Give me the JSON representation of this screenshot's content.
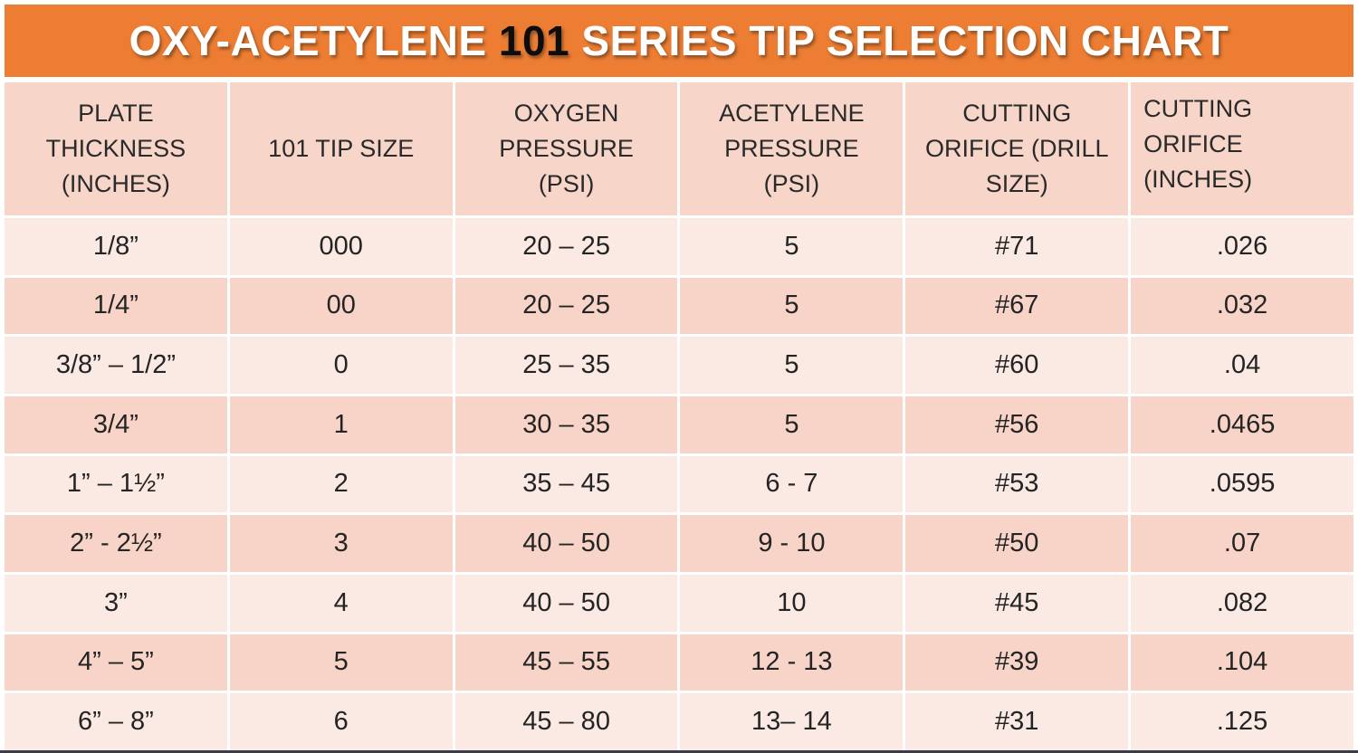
{
  "banner": {
    "title_prefix": "OXY-ACETYLENE",
    "title_highlight": "101",
    "title_suffix": "SERIES TIP SELECTION CHART",
    "background_color": "#ec7d33",
    "text_color": "#ffffff",
    "highlight_color": "#0d0d0d"
  },
  "colors": {
    "header_cell": "#f7d5c9",
    "row_light": "#fbe9e4",
    "row_dark": "#f7d4c7",
    "text": "#242424",
    "bottom_bar": "#3a3a48"
  },
  "chart_data": {
    "type": "table",
    "title": "OXY-ACETYLENE 101 SERIES TIP SELECTION CHART",
    "columns": [
      "PLATE THICKNESS (INCHES)",
      "101 TIP SIZE",
      "OXYGEN PRESSURE (PSI)",
      "ACETYLENE PRESSURE (PSI)",
      "CUTTING ORIFICE (DRILL SIZE)",
      "CUTTING ORIFICE (INCHES)"
    ],
    "rows": [
      [
        "1/8”",
        "000",
        "20 – 25",
        "5",
        "#71",
        ".026"
      ],
      [
        "1/4”",
        "00",
        "20 – 25",
        "5",
        "#67",
        ".032"
      ],
      [
        "3/8” – 1/2”",
        "0",
        "25 – 35",
        "5",
        "#60",
        ".04"
      ],
      [
        "3/4”",
        "1",
        "30 – 35",
        "5",
        "#56",
        ".0465"
      ],
      [
        "1” – 1½”",
        "2",
        "35 – 45",
        "6 - 7",
        "#53",
        ".0595"
      ],
      [
        "2” - 2½”",
        "3",
        "40 – 50",
        "9 - 10",
        "#50",
        ".07"
      ],
      [
        "3”",
        "4",
        "40 – 50",
        "10",
        "#45",
        ".082"
      ],
      [
        "4” – 5”",
        "5",
        "45 – 55",
        "12 - 13",
        "#39",
        ".104"
      ],
      [
        "6” – 8”",
        "6",
        "45 – 80",
        "13– 14",
        "#31",
        ".125"
      ]
    ]
  }
}
